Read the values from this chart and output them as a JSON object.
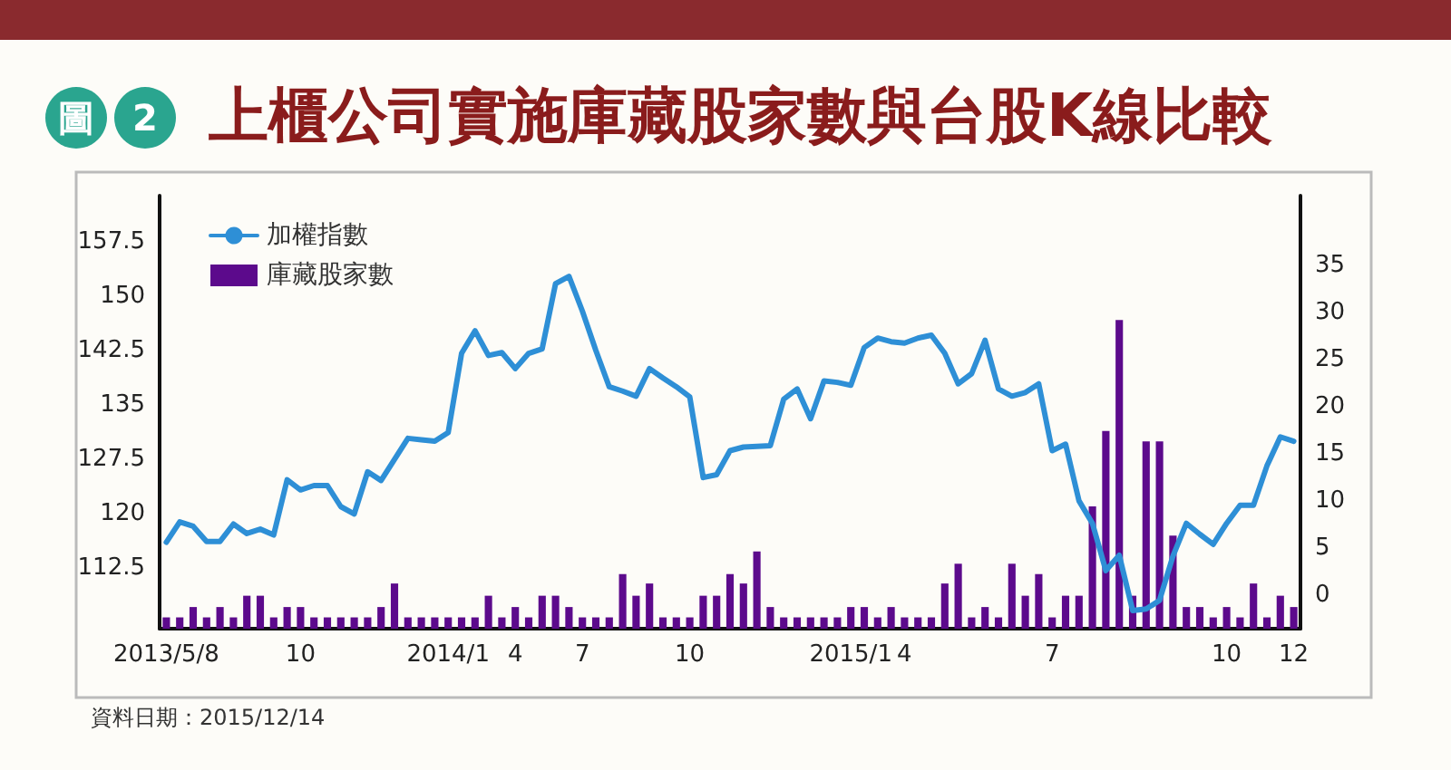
{
  "chart_data": {
    "type": "line",
    "title": "上櫃公司實施庫藏股家數與台股K線比較",
    "annotations": [
      "圖 2",
      "資料日期：2015/12/14"
    ],
    "categories": [
      "2013/5/8",
      null,
      null,
      null,
      null,
      null,
      null,
      null,
      null,
      null,
      "10",
      null,
      null,
      null,
      null,
      null,
      null,
      null,
      null,
      null,
      null,
      "2014/1",
      null,
      null,
      null,
      null,
      "4",
      null,
      null,
      null,
      null,
      "7",
      null,
      null,
      null,
      null,
      null,
      null,
      null,
      "10",
      null,
      null,
      null,
      null,
      null,
      null,
      null,
      null,
      null,
      null,
      null,
      "2015/1",
      null,
      null,
      null,
      "4",
      null,
      null,
      null,
      null,
      null,
      null,
      null,
      null,
      null,
      null,
      "7",
      null,
      null,
      null,
      null,
      null,
      null,
      null,
      null,
      null,
      null,
      null,
      null,
      "10",
      null,
      null,
      null,
      null,
      "12"
    ],
    "series": [
      {
        "name": "加權指數",
        "color": "#2e8fd6",
        "values": [
          116.1,
          118.9,
          118.3,
          116.2,
          116.2,
          118.6,
          117.3,
          117.9,
          117.1,
          124.7,
          123.3,
          123.9,
          123.9,
          121.0,
          120.0,
          125.8,
          124.6,
          127.5,
          130.4,
          130.2,
          130.0,
          131.2,
          142.1,
          145.2,
          141.8,
          142.2,
          140.0,
          142.1,
          142.7,
          151.7,
          152.7,
          147.9,
          142.5,
          137.5,
          136.9,
          136.2,
          140.0,
          138.7,
          137.5,
          136.1,
          125.0,
          125.4,
          128.7,
          129.2,
          129.3,
          129.4,
          135.8,
          137.2,
          133.1,
          138.3,
          138.1,
          137.7,
          142.9,
          144.2,
          143.7,
          143.5,
          144.2,
          144.6,
          142.1,
          137.9,
          139.3,
          143.9,
          137.2,
          136.2,
          136.7,
          137.9,
          128.7,
          129.6,
          121.8,
          118.7,
          112.2,
          114.3,
          106.7,
          106.9,
          108.1,
          114.2,
          118.7,
          117.2,
          115.8,
          118.7,
          121.2,
          121.2,
          126.6,
          130.6,
          130.0
        ]
      },
      {
        "name": "庫藏股家數",
        "type": "bar",
        "axis": "y2",
        "color": "#5c0a8c",
        "base": [
          -3.6,
          -3.6,
          -3.6,
          -3.6,
          -3.6,
          -3.6,
          -3.6,
          -3.6,
          -3.6,
          -3.6,
          -3.6,
          -3.6,
          -3.6,
          -3.6,
          -3.6,
          -3.6,
          -3.6,
          -3.6,
          -3.6,
          -3.6,
          -3.6,
          -3.6,
          -3.6,
          -3.6,
          -3.6,
          -3.6,
          -3.6,
          -3.6,
          -3.6,
          -3.6,
          -3.6,
          -3.6,
          -3.6,
          -3.6,
          -3.6,
          -3.6,
          -3.6,
          -3.6,
          -3.6,
          -3.6,
          -3.6,
          -3.6,
          -3.6,
          -3.6,
          -3.6,
          -3.6,
          -3.6,
          -3.6,
          -3.6,
          -3.6,
          -3.6,
          -3.6,
          -3.6,
          -3.6,
          -3.6,
          -3.6,
          -3.6,
          -3.6,
          -3.6,
          -3.6,
          -3.6,
          -3.6,
          -3.6,
          -3.6,
          -3.6,
          -3.6,
          -3.6,
          -3.6,
          -3.6,
          -3.6,
          -3.6,
          -3.6,
          -3.6,
          -3.6,
          -3.6,
          -3.6,
          -3.6,
          -3.6,
          -3.6,
          -3.6,
          -3.6,
          -3.6,
          -3.6,
          -3.6,
          -3.6
        ],
        "values": [
          1.2,
          1.2,
          2.3,
          1.2,
          2.3,
          1.2,
          3.5,
          3.5,
          1.2,
          2.3,
          2.3,
          1.2,
          1.2,
          1.2,
          1.2,
          1.2,
          2.3,
          4.8,
          1.2,
          1.2,
          1.2,
          1.2,
          1.2,
          1.2,
          3.5,
          1.2,
          2.3,
          1.2,
          3.5,
          3.5,
          2.3,
          1.2,
          1.2,
          1.2,
          5.8,
          3.5,
          4.8,
          1.2,
          1.2,
          1.2,
          3.5,
          3.5,
          5.8,
          4.8,
          8.2,
          2.3,
          1.2,
          1.2,
          1.2,
          1.2,
          1.2,
          2.3,
          2.3,
          1.2,
          2.3,
          1.2,
          1.2,
          1.2,
          4.8,
          6.9,
          1.2,
          2.3,
          1.2,
          6.9,
          3.5,
          5.8,
          1.2,
          3.5,
          3.5,
          13.0,
          21.0,
          32.8,
          3.5,
          19.9,
          19.9,
          9.9,
          2.3,
          2.3,
          1.2,
          2.3,
          1.2,
          4.8,
          1.2,
          3.5,
          2.3
        ]
      }
    ],
    "ylim": [
      104.2,
      163.8
    ],
    "yticks": [
      112.5,
      120,
      127.5,
      135,
      142.5,
      150,
      157.5
    ],
    "y2lim": [
      -3.6,
      42.4
    ],
    "y2ticks": [
      0,
      5,
      10,
      15,
      20,
      25,
      30,
      35
    ],
    "legend": "top left",
    "marker": "none",
    "line_style": "solid",
    "grid": false
  }
}
